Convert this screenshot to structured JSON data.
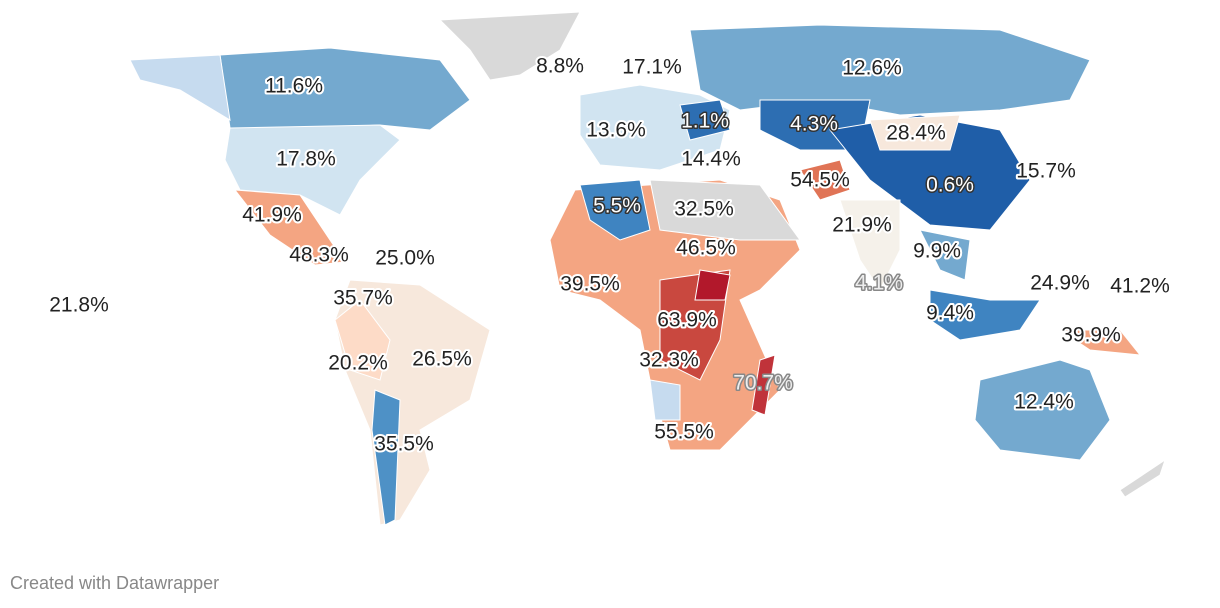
{
  "labels": [
    "11.6%",
    "17.8%",
    "8.8%",
    "17.1%",
    "12.6%",
    "13.6%",
    "1.1%",
    "4.3%",
    "28.4%",
    "14.4%",
    "15.7%",
    "54.5%",
    "0.6%",
    "41.9%",
    "5.5%",
    "32.5%",
    "21.9%",
    "48.3%",
    "25.0%",
    "46.5%",
    "9.9%",
    "4.1%",
    "24.9%",
    "41.2%",
    "21.8%",
    "39.5%",
    "35.7%",
    "9.4%",
    "63.9%",
    "39.9%",
    "20.2%",
    "26.5%",
    "32.3%",
    "70.7%",
    "12.4%",
    "55.5%",
    "35.5%"
  ],
  "footer": "Created with Datawrapper"
}
